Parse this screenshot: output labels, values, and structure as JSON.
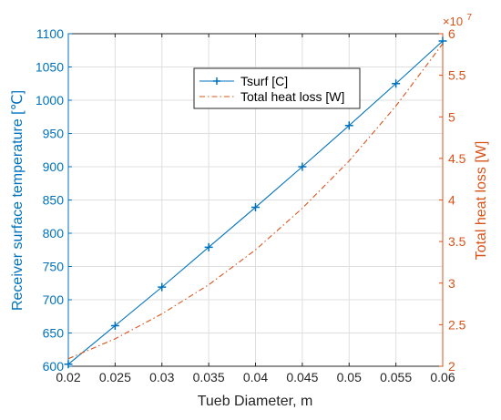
{
  "colors": {
    "left_axis": "#0072BD",
    "right_axis": "#D95319",
    "grid": "#dfdfdf",
    "bottom_axis": "#262626"
  },
  "chart_data": {
    "type": "line",
    "grid": true,
    "legend_placement": "top-center",
    "xlabel": "Tueb Diameter, m",
    "ylabel_left": "Receiver surface temperature [℃]",
    "ylabel_right": "Total heat loss  [W]",
    "xlim": [
      0.02,
      0.06
    ],
    "ylim_left": [
      600,
      1100
    ],
    "ylim_right": [
      20000000,
      60000000
    ],
    "right_axis_exponent": {
      "base": "×10",
      "power": "7"
    },
    "x_ticks": [
      "0.02",
      "0.025",
      "0.03",
      "0.035",
      "0.04",
      "0.045",
      "0.05",
      "0.055",
      "0.06"
    ],
    "y_left_ticks": [
      "600",
      "650",
      "700",
      "750",
      "800",
      "850",
      "900",
      "950",
      "1000",
      "1050",
      "1100"
    ],
    "y_right_ticks": [
      "2",
      "2.5",
      "3",
      "3.5",
      "4",
      "4.5",
      "5",
      "5.5",
      "6"
    ],
    "series": [
      {
        "name": "Tsurf [C]",
        "axis": "left",
        "color": "#0072BD",
        "style": "solid",
        "marker": "plus",
        "x": [
          0.02,
          0.025,
          0.03,
          0.035,
          0.04,
          0.045,
          0.05,
          0.055,
          0.06
        ],
        "y": [
          603,
          661,
          719,
          779,
          839,
          900,
          962,
          1025,
          1089
        ]
      },
      {
        "name": "Total heat loss [W]",
        "axis": "right",
        "color": "#D95319",
        "style": "dash-dot",
        "marker": "none",
        "x": [
          0.02,
          0.025,
          0.03,
          0.035,
          0.04,
          0.045,
          0.05,
          0.055,
          0.06
        ],
        "y": [
          20900000,
          23300000,
          26300000,
          29800000,
          34000000,
          39000000,
          44700000,
          51300000,
          58800000
        ]
      }
    ]
  }
}
